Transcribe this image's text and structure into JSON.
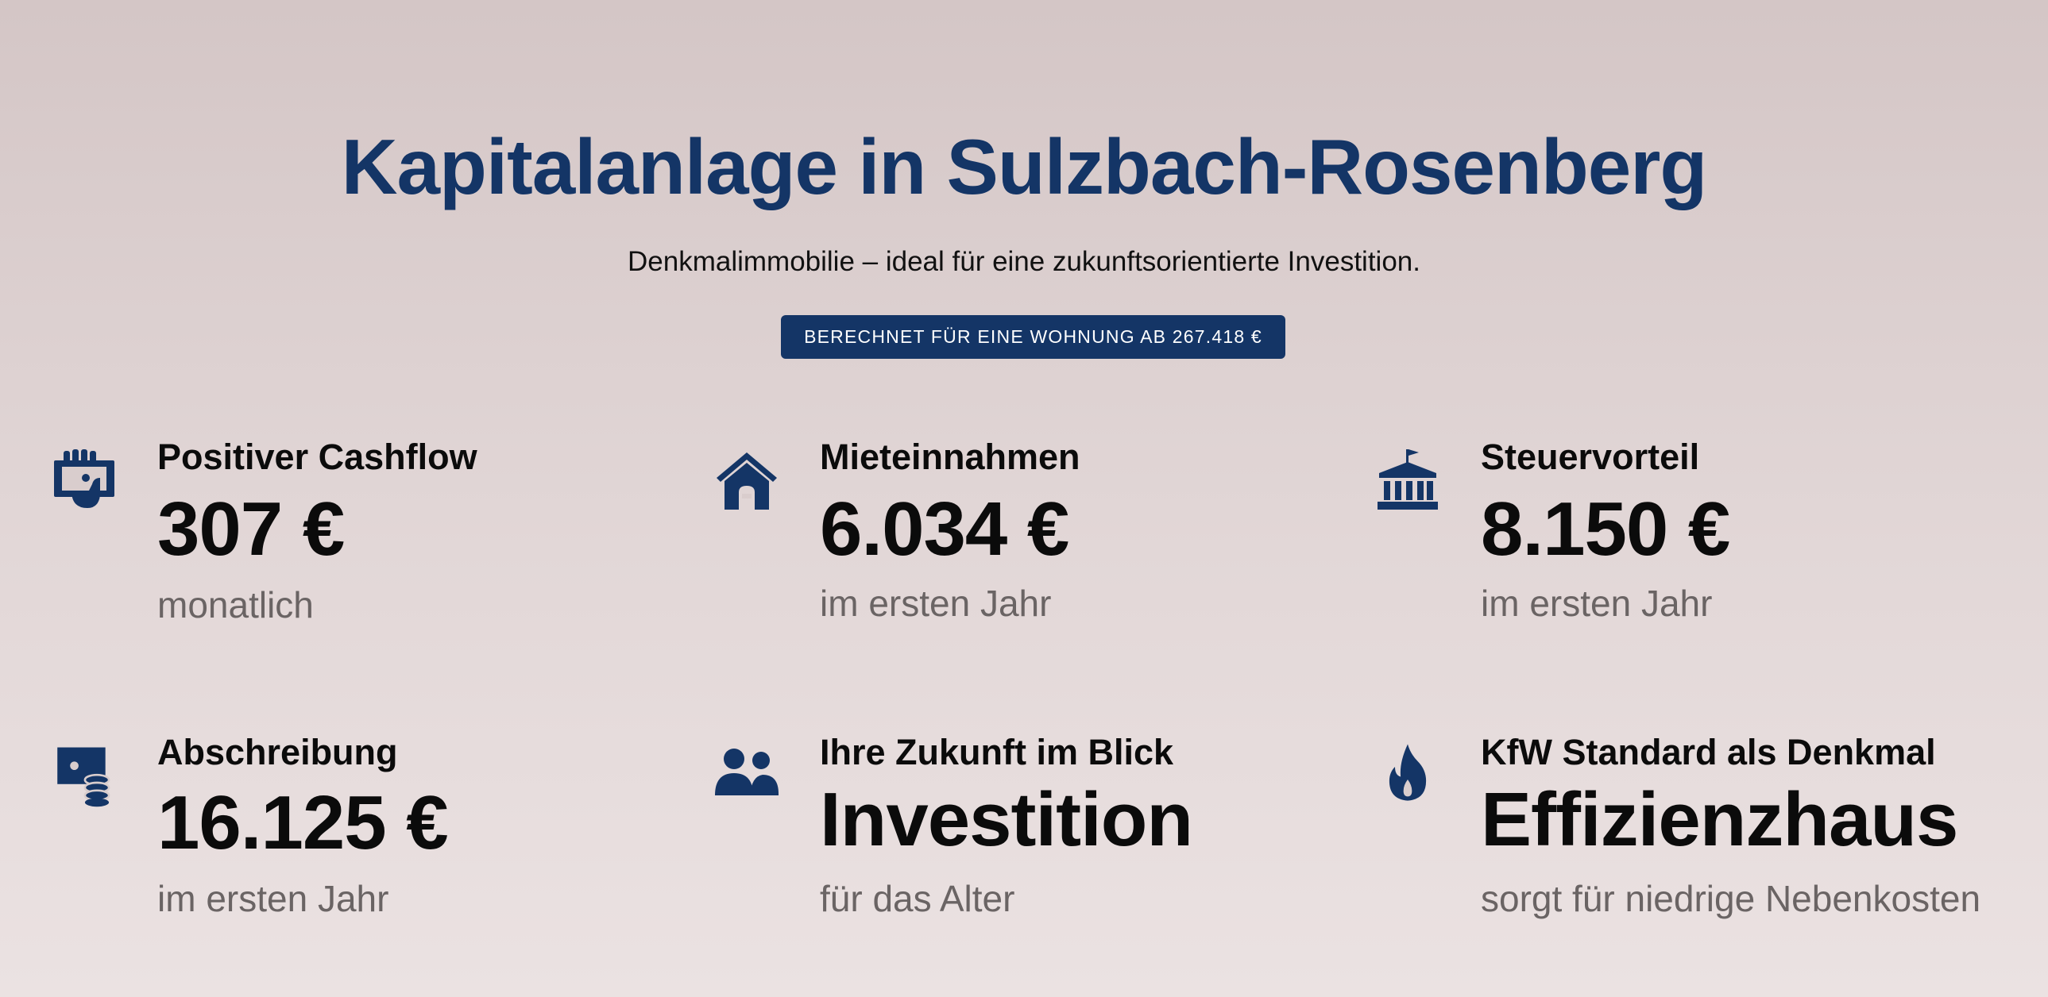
{
  "header": {
    "title": "Kapitalanlage in Sulzbach-Rosenberg",
    "subtitle": "Denkmalimmobilie – ideal für eine zukunftsorientierte Investition.",
    "badge": "BERECHNET FÜR EINE WOHNUNG AB 267.418 €"
  },
  "colors": {
    "accent": "#143566",
    "muted": "#6a6464"
  },
  "features": [
    {
      "icon": "cashflow-icon",
      "heading": "Positiver Cashflow",
      "value": "307 €",
      "note": "monatlich"
    },
    {
      "icon": "house-icon",
      "heading": "Mieteinnahmen",
      "value": "6.034 €",
      "note": "im ersten Jahr"
    },
    {
      "icon": "building-columns-icon",
      "heading": "Steuervorteil",
      "value": "8.150 €",
      "note": "im ersten Jahr"
    },
    {
      "icon": "money-coins-icon",
      "heading": "Abschreibung",
      "value": "16.125 €",
      "note": "im ersten Jahr"
    },
    {
      "icon": "users-icon",
      "heading": "Ihre Zukunft im Blick",
      "value": "Investition",
      "note": "für das Alter"
    },
    {
      "icon": "fire-icon",
      "heading": "KfW Standard als Denkmal",
      "value": "Effizienzhaus",
      "note": "sorgt für niedrige Nebenkosten"
    }
  ]
}
